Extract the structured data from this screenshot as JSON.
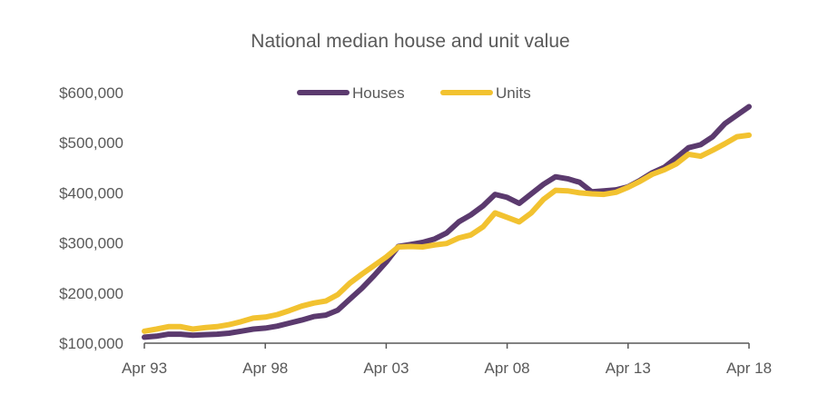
{
  "chart_data": {
    "type": "line",
    "title": "National median house and unit value",
    "xlabel": "",
    "ylabel": "",
    "x": [
      "Apr 93",
      "Oct 93",
      "Apr 94",
      "Oct 94",
      "Apr 95",
      "Oct 95",
      "Apr 96",
      "Oct 96",
      "Apr 97",
      "Oct 97",
      "Apr 98",
      "Oct 98",
      "Apr 99",
      "Oct 99",
      "Apr 00",
      "Oct 00",
      "Apr 01",
      "Oct 01",
      "Apr 02",
      "Oct 02",
      "Apr 03",
      "Oct 03",
      "Apr 04",
      "Oct 04",
      "Apr 05",
      "Oct 05",
      "Apr 06",
      "Oct 06",
      "Apr 07",
      "Oct 07",
      "Apr 08",
      "Oct 08",
      "Apr 09",
      "Oct 09",
      "Apr 10",
      "Oct 10",
      "Apr 11",
      "Oct 11",
      "Apr 12",
      "Oct 12",
      "Apr 13",
      "Oct 13",
      "Apr 14",
      "Oct 14",
      "Apr 15",
      "Oct 15",
      "Apr 16",
      "Oct 16",
      "Apr 17",
      "Oct 17",
      "Apr 18"
    ],
    "x_ticks": [
      "Apr 93",
      "Apr 98",
      "Apr 03",
      "Apr 08",
      "Apr 13",
      "Apr 18"
    ],
    "series": [
      {
        "name": "Houses",
        "color": "#5B3A6E",
        "values": [
          112000,
          114000,
          118000,
          118000,
          116000,
          117000,
          118000,
          120000,
          124000,
          128000,
          130000,
          134000,
          140000,
          146000,
          153000,
          156000,
          166000,
          188000,
          210000,
          235000,
          262000,
          293000,
          297000,
          301000,
          308000,
          320000,
          342000,
          356000,
          374000,
          397000,
          391000,
          379000,
          398000,
          417000,
          432000,
          428000,
          421000,
          402000,
          404000,
          406000,
          412000,
          425000,
          440000,
          451000,
          470000,
          490000,
          496000,
          512000,
          538000,
          555000,
          572000
        ]
      },
      {
        "name": "Units",
        "color": "#F2C230",
        "values": [
          124000,
          128000,
          133000,
          133000,
          128000,
          131000,
          133000,
          137000,
          143000,
          150000,
          152000,
          157000,
          165000,
          174000,
          180000,
          184000,
          197000,
          220000,
          238000,
          255000,
          272000,
          292000,
          293000,
          292000,
          296000,
          299000,
          310000,
          316000,
          332000,
          360000,
          351000,
          342000,
          360000,
          387000,
          405000,
          404000,
          400000,
          398000,
          397000,
          401000,
          411000,
          423000,
          437000,
          446000,
          458000,
          477000,
          473000,
          485000,
          498000,
          512000,
          515000
        ]
      }
    ],
    "y_ticks": [
      100000,
      200000,
      300000,
      400000,
      500000,
      600000
    ],
    "y_tick_labels": [
      "$100,000",
      "$200,000",
      "$300,000",
      "$400,000",
      "$500,000",
      "$600,000"
    ],
    "ylim": [
      100000,
      600000
    ],
    "grid": false,
    "legend_position": "top-center"
  }
}
